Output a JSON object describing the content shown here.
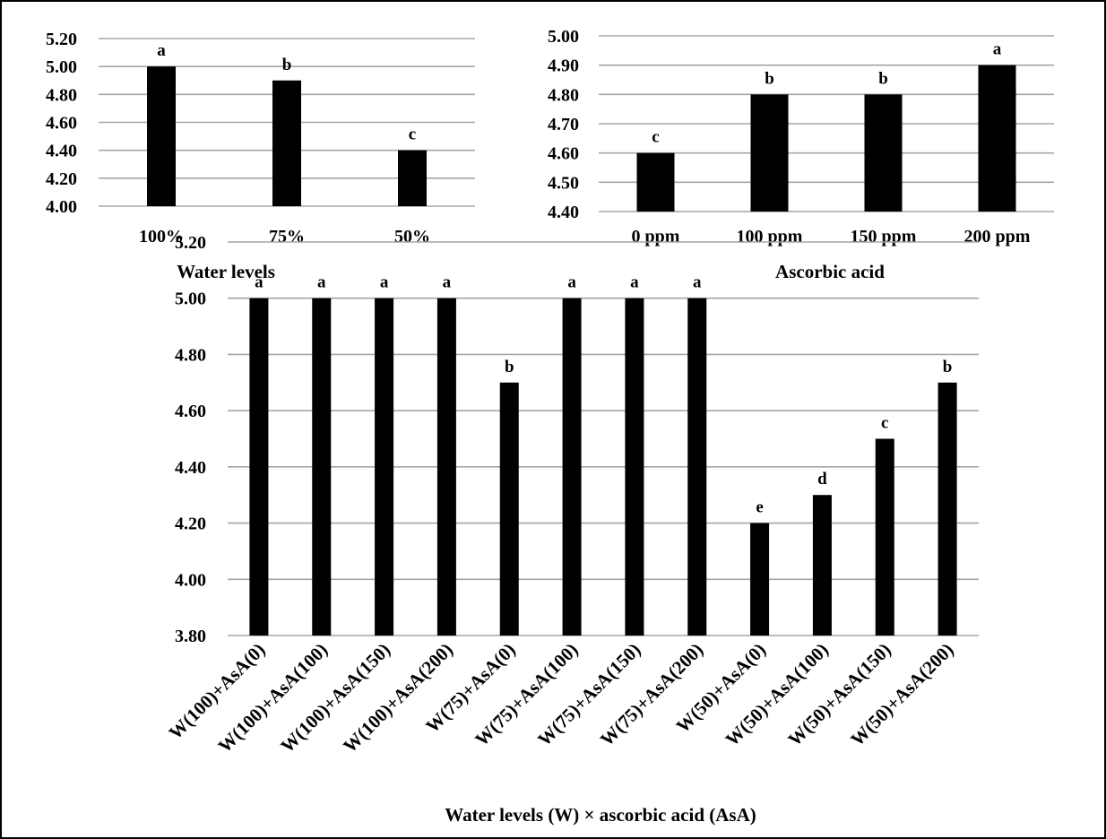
{
  "chart_data": [
    {
      "type": "bar",
      "xlabel": "Water levels",
      "categories": [
        "100%",
        "75%",
        "50%"
      ],
      "values": [
        5.0,
        4.9,
        4.4
      ],
      "data_labels": [
        "a",
        "b",
        "c"
      ],
      "ylim": [
        4.0,
        5.2
      ],
      "yticks": [
        "4.00",
        "4.20",
        "4.40",
        "4.60",
        "4.80",
        "5.00",
        "5.20"
      ],
      "grid": true,
      "bar_color": "#000000",
      "grid_color": "#a6a6a6"
    },
    {
      "type": "bar",
      "xlabel": "Ascorbic acid",
      "categories": [
        "0 ppm",
        "100 ppm",
        "150 ppm",
        "200 ppm"
      ],
      "values": [
        4.6,
        4.8,
        4.8,
        4.9
      ],
      "data_labels": [
        "c",
        "b",
        "b",
        "a"
      ],
      "ylim": [
        4.4,
        5.0
      ],
      "yticks": [
        "4.40",
        "4.50",
        "4.60",
        "4.70",
        "4.80",
        "4.90",
        "5.00"
      ],
      "grid": true,
      "bar_color": "#000000",
      "grid_color": "#a6a6a6"
    },
    {
      "type": "bar",
      "xlabel": "Water levels (W) × ascorbic acid (AsA)",
      "categories": [
        "W(100)+AsA(0)",
        "W(100)+AsA(100)",
        "W(100)+AsA(150)",
        "W(100)+AsA(200)",
        "W(75)+AsA(0)",
        "W(75)+AsA(100)",
        "W(75)+AsA(150)",
        "W(75)+AsA(200)",
        "W(50)+AsA(0)",
        "W(50)+AsA(100)",
        "W(50)+AsA(150)",
        "W(50)+AsA(200)"
      ],
      "values": [
        5.0,
        5.0,
        5.0,
        5.0,
        4.7,
        5.0,
        5.0,
        5.0,
        4.2,
        4.3,
        4.5,
        4.7
      ],
      "data_labels": [
        "a",
        "a",
        "a",
        "a",
        "b",
        "a",
        "a",
        "a",
        "e",
        "d",
        "c",
        "b"
      ],
      "ylim": [
        3.8,
        5.2
      ],
      "yticks": [
        "3.80",
        "4.00",
        "4.20",
        "4.40",
        "4.60",
        "4.80",
        "5.00",
        "5.20"
      ],
      "grid": true,
      "bar_color": "#000000",
      "grid_color": "#a6a6a6"
    }
  ]
}
